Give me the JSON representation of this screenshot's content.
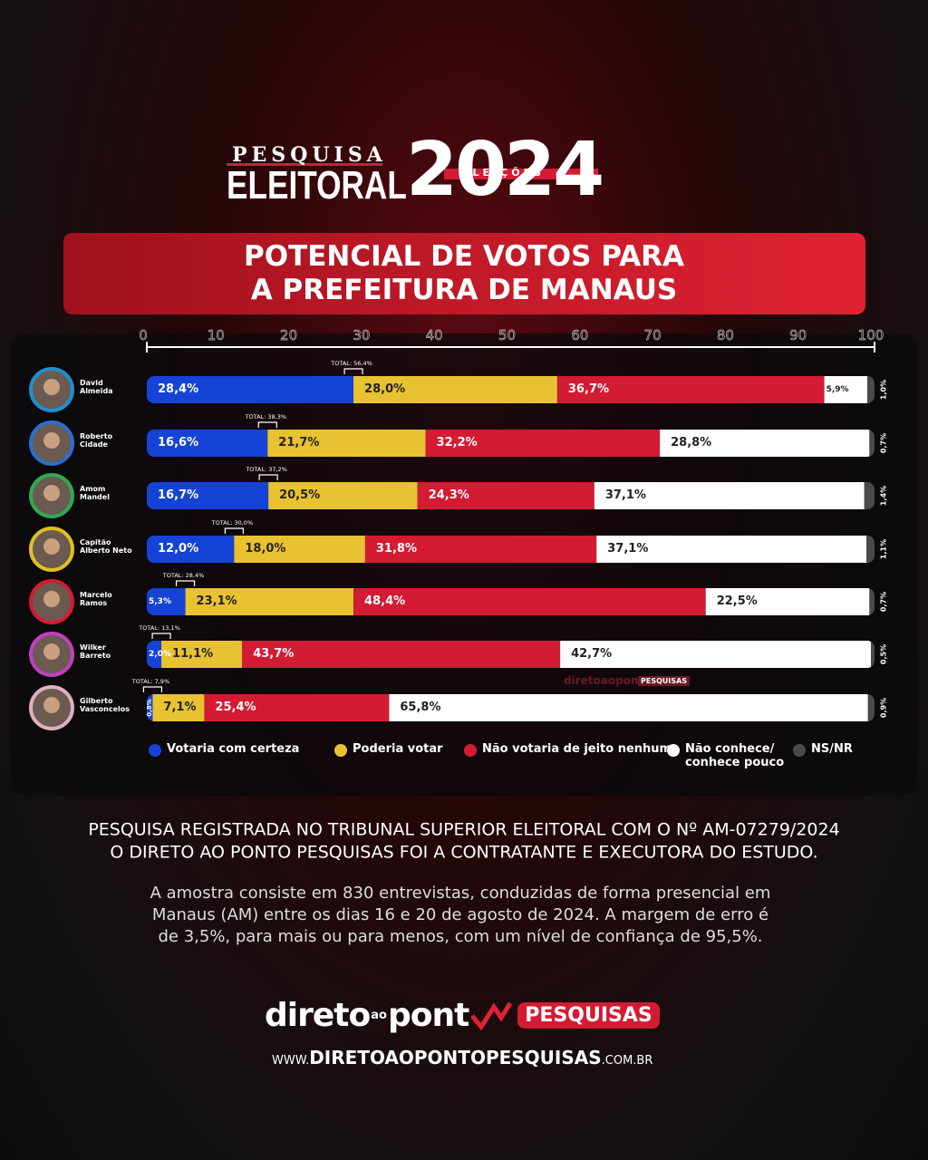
{
  "header": {
    "kicker": "PESQUISA",
    "title": "ELEITORAL",
    "year": "2024",
    "badge": "ELEIÇÕES"
  },
  "chart_data": {
    "type": "stacked-bar",
    "orientation": "horizontal",
    "title": "POTENCIAL DE VOTOS PARA\nA PREFEITURA DE MANAUS",
    "categories": [
      "David\nAlmeida",
      "Roberto\nCidade",
      "Amom\nMandel",
      "Capitão\nAlberto Neto",
      "Marcelo\nRamos",
      "Wilker\nBarreto",
      "Gilberto\nVasconcelos"
    ],
    "series": [
      {
        "name": "Votaria com certeza",
        "color": "#1443d6",
        "values": [
          28.4,
          16.6,
          16.7,
          12.0,
          5.3,
          2.0,
          0.8
        ],
        "value_labels": [
          "28,4%",
          "16,6%",
          "16,7%",
          "12,0%",
          "5,3%",
          "2,0%",
          "0,8%"
        ]
      },
      {
        "name": "Poderia votar",
        "color": "#e9c232",
        "values": [
          28.0,
          21.7,
          20.5,
          18.0,
          23.1,
          11.1,
          7.1
        ],
        "value_labels": [
          "28,0%",
          "21,7%",
          "20,5%",
          "18,0%",
          "23,1%",
          "11,1%",
          "7,1%"
        ]
      },
      {
        "name": "Não votaria de jeito nenhum",
        "color": "#d31b33",
        "values": [
          36.7,
          32.2,
          24.3,
          31.8,
          48.4,
          43.7,
          25.4
        ],
        "value_labels": [
          "36,7%",
          "32,2%",
          "24,3%",
          "31,8%",
          "48,4%",
          "43,7%",
          "25,4%"
        ]
      },
      {
        "name": "Não conhece/\nconhece pouco",
        "color": "#ffffff",
        "values": [
          5.9,
          28.8,
          37.1,
          37.1,
          22.5,
          42.7,
          65.8
        ],
        "value_labels": [
          "5,9%",
          "28,8%",
          "37,1%",
          "37,1%",
          "22,5%",
          "42,7%",
          "65,8%"
        ]
      },
      {
        "name": "NS/NR",
        "color": "#4a4a4a",
        "values": [
          1.0,
          0.7,
          1.4,
          1.1,
          0.7,
          0.5,
          0.9
        ],
        "value_labels": [
          "1,0%",
          "0,7%",
          "1,4%",
          "1,1%",
          "0,7%",
          "0,5%",
          "0,9%"
        ]
      }
    ],
    "totals": {
      "values": [
        56.4,
        38.3,
        37.2,
        30.0,
        28.4,
        13.1,
        7.9
      ],
      "value_labels": [
        "TOTAL: 56,4%",
        "TOTAL: 38,3%",
        "TOTAL: 37,2%",
        "TOTAL: 30,0%",
        "TOTAL: 28,4%",
        "TOTAL: 13,1%",
        "TOTAL: 7,9%"
      ]
    },
    "xlim": [
      0,
      100
    ],
    "xticks": [
      0,
      10,
      20,
      30,
      40,
      50,
      60,
      70,
      80,
      90,
      100
    ],
    "legend": "bottom"
  },
  "watermark": {
    "brand": "diretoaopont",
    "tag": "PESQUISAS"
  },
  "notes": [
    "PESQUISA REGISTRADA NO TRIBUNAL SUPERIOR ELEITORAL COM O Nº AM-07279/2024\nO DIRETO AO PONTO PESQUISAS FOI A CONTRATANTE E EXECUTORA DO ESTUDO.",
    "A amostra consiste em 830 entrevistas, conduzidas de forma presencial em\nManaus (AM) entre os dias 16 e 20 de agosto de 2024. A margem de erro é\nde 3,5%, para mais ou para menos, com um nível de confiança de 95,5%."
  ],
  "footer": {
    "brand_a": "direto",
    "brand_b": "ao",
    "brand_c": "pont",
    "brand_tag": "PESQUISAS",
    "url_prefix": "WWW.",
    "url_main": "DIRETOAOPONTOPESQUISAS",
    "url_suffix": ".COM.BR"
  }
}
